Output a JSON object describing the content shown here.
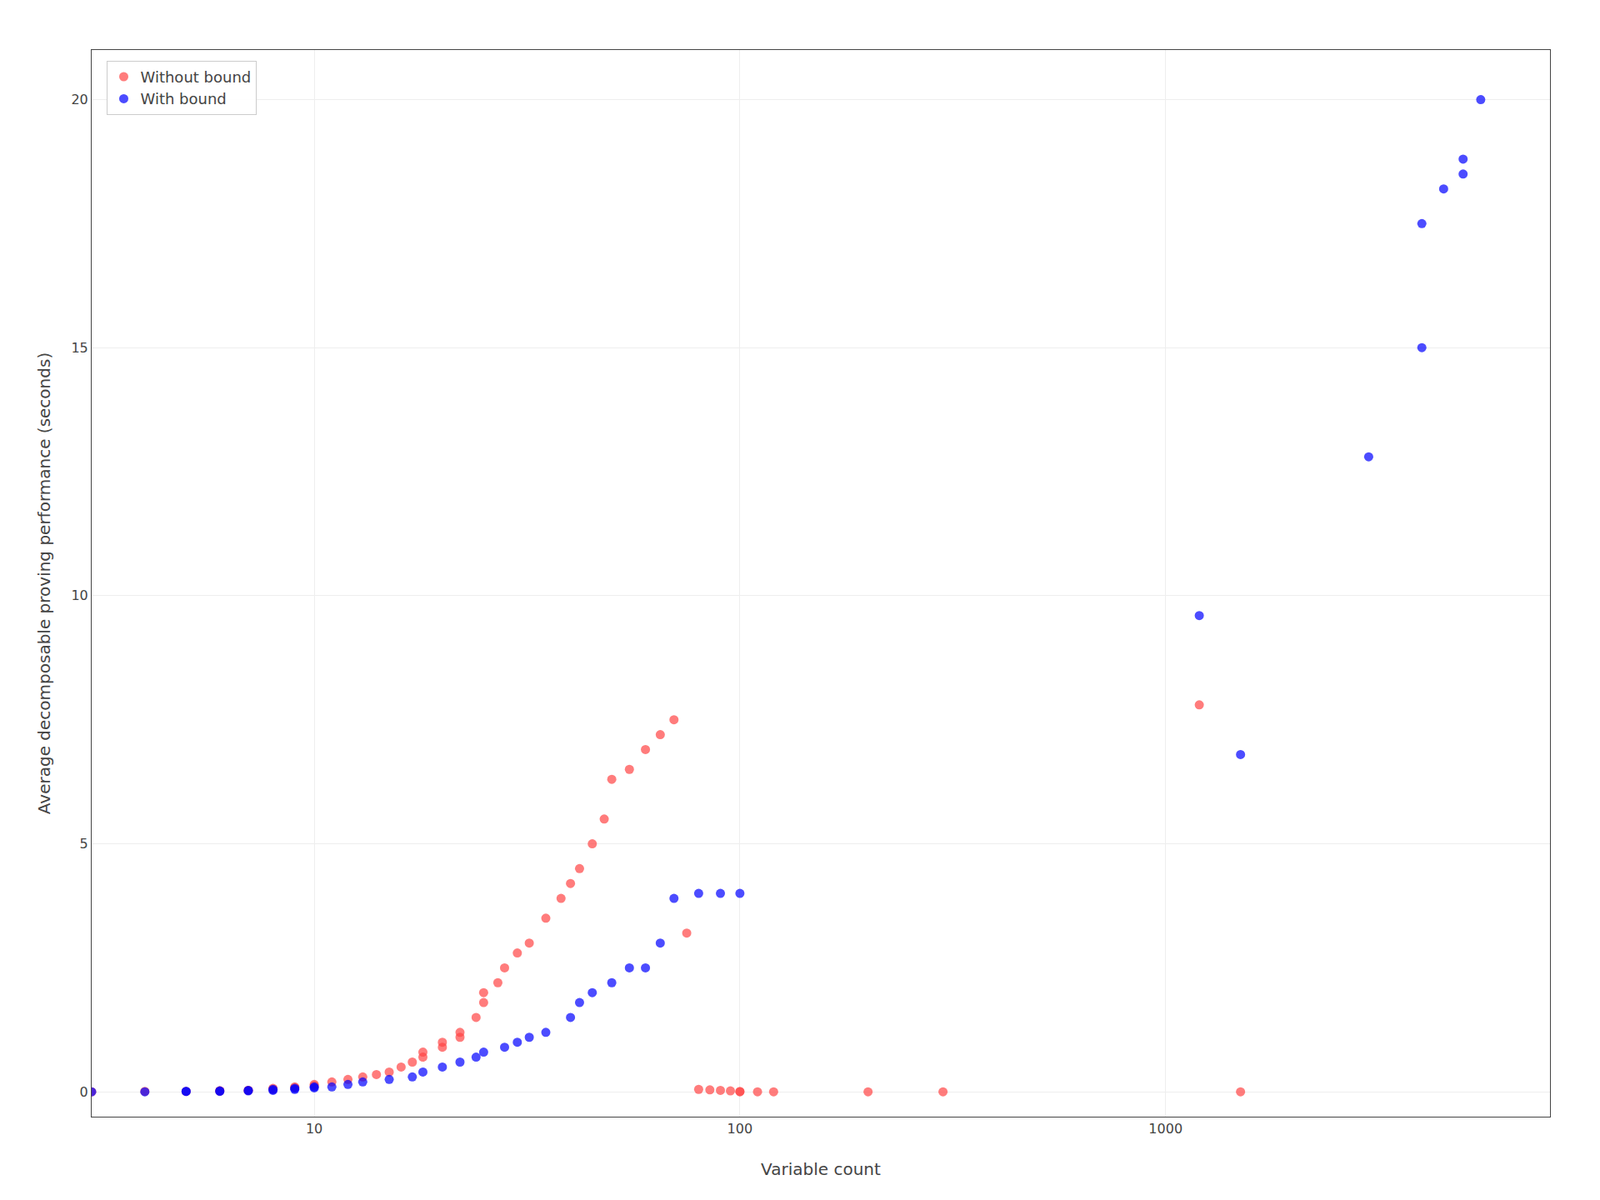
{
  "chart_data": {
    "type": "scatter",
    "xlabel": "Variable count",
    "ylabel": "Average decomposable proving performance (seconds)",
    "series": [
      {
        "name": "Without bound",
        "color": "#ff4444",
        "x": [
          3,
          4,
          5,
          6,
          6,
          7,
          7,
          8,
          8,
          9,
          9,
          10,
          10,
          11,
          12,
          13,
          14,
          15,
          16,
          17,
          18,
          18,
          20,
          20,
          22,
          22,
          24,
          25,
          25,
          27,
          28,
          30,
          32,
          35,
          38,
          40,
          42,
          45,
          48,
          50,
          55,
          60,
          65,
          70,
          75,
          80,
          85,
          90,
          95,
          100,
          100,
          110,
          120,
          200,
          300,
          1200,
          1500
        ],
        "values": [
          0.0,
          0.01,
          0.01,
          0.02,
          0.02,
          0.03,
          0.03,
          0.05,
          0.07,
          0.08,
          0.1,
          0.12,
          0.15,
          0.2,
          0.25,
          0.3,
          0.35,
          0.4,
          0.5,
          0.6,
          0.7,
          0.8,
          0.9,
          1.0,
          1.1,
          1.2,
          1.5,
          1.8,
          2.0,
          2.2,
          2.5,
          2.8,
          3.0,
          3.5,
          3.9,
          4.2,
          4.5,
          5.0,
          5.5,
          6.3,
          6.5,
          6.9,
          7.2,
          7.5,
          3.2,
          0.05,
          0.04,
          0.03,
          0.02,
          0.01,
          0.0,
          0.0,
          0.0,
          0.0,
          0.0,
          7.8,
          0.0
        ]
      },
      {
        "name": "With bound",
        "color": "#0000ff",
        "x": [
          3,
          4,
          5,
          5,
          6,
          6,
          7,
          7,
          8,
          8,
          9,
          9,
          10,
          10,
          11,
          12,
          13,
          15,
          17,
          18,
          20,
          22,
          24,
          25,
          28,
          30,
          32,
          35,
          40,
          42,
          45,
          50,
          55,
          60,
          65,
          70,
          80,
          90,
          100,
          1200,
          1500,
          3000,
          4000,
          4000,
          4500,
          5000,
          5000,
          5500
        ],
        "values": [
          0.0,
          0.0,
          0.01,
          0.01,
          0.01,
          0.02,
          0.02,
          0.03,
          0.03,
          0.05,
          0.05,
          0.07,
          0.08,
          0.1,
          0.1,
          0.15,
          0.2,
          0.25,
          0.3,
          0.4,
          0.5,
          0.6,
          0.7,
          0.8,
          0.9,
          1.0,
          1.1,
          1.2,
          1.5,
          1.8,
          2.0,
          2.2,
          2.5,
          2.5,
          3.0,
          3.9,
          4.0,
          4.0,
          4.0,
          9.6,
          6.8,
          12.8,
          15.0,
          17.5,
          18.2,
          18.5,
          18.8,
          20.0
        ]
      }
    ],
    "log": "x",
    "xlim": [
      3,
      8000
    ],
    "xticks": [
      10,
      100,
      1000
    ],
    "ylim": [
      -0.5,
      21
    ],
    "yticks": [
      0,
      5,
      10,
      15,
      20
    ],
    "grid": true,
    "legend": "upper left"
  }
}
